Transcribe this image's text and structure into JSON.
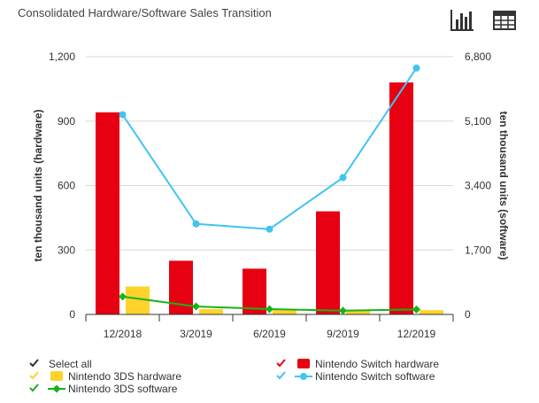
{
  "page": {
    "title": "Consolidated Hardware/Software Sales Transition"
  },
  "toolbar": {
    "chart_icon": "bar-chart-icon",
    "table_icon": "table-icon"
  },
  "colors": {
    "switch_hw": "#e60012",
    "ds_hw": "#ffd32a",
    "switch_sw": "#3fc5f0",
    "ds_sw": "#17b317",
    "axis": "#333333",
    "grid": "#d9d9d9"
  },
  "legend": {
    "select_all": "Select all",
    "items": [
      {
        "key": "switch_hw",
        "label": "Nintendo Switch hardware",
        "marker": "bar"
      },
      {
        "key": "ds_hw",
        "label": "Nintendo 3DS hardware",
        "marker": "bar"
      },
      {
        "key": "switch_sw",
        "label": "Nintendo Switch software",
        "marker": "line"
      },
      {
        "key": "ds_sw",
        "label": "Nintendo 3DS software",
        "marker": "line-diamond"
      }
    ]
  },
  "chart_data": {
    "type": "bar",
    "title": "Consolidated Hardware/Software Sales Transition",
    "categories": [
      "12/2018",
      "3/2019",
      "6/2019",
      "9/2019",
      "12/2019"
    ],
    "y_left": {
      "label": "ten thousand units (hardware)",
      "ticks": [
        "0",
        "300",
        "600",
        "900",
        "1,200"
      ],
      "range": [
        0,
        1200
      ]
    },
    "y_right": {
      "label": "ten thousand units (software)",
      "ticks": [
        "0",
        "1,700",
        "3,400",
        "5,100",
        "6,800"
      ],
      "range": [
        0,
        6800
      ]
    },
    "series": [
      {
        "name": "Nintendo Switch hardware",
        "type": "bar",
        "axis": "left",
        "values": [
          941,
          250,
          213,
          480,
          1080
        ]
      },
      {
        "name": "Nintendo 3DS hardware",
        "type": "bar",
        "axis": "left",
        "values": [
          130,
          25,
          20,
          20,
          20
        ]
      },
      {
        "name": "Nintendo Switch software",
        "type": "line",
        "axis": "right",
        "values": [
          5270,
          2390,
          2250,
          3610,
          6500
        ]
      },
      {
        "name": "Nintendo 3DS software",
        "type": "line",
        "axis": "right",
        "values": [
          470,
          210,
          140,
          100,
          130
        ]
      }
    ],
    "grid": true,
    "legend_position": "bottom"
  }
}
